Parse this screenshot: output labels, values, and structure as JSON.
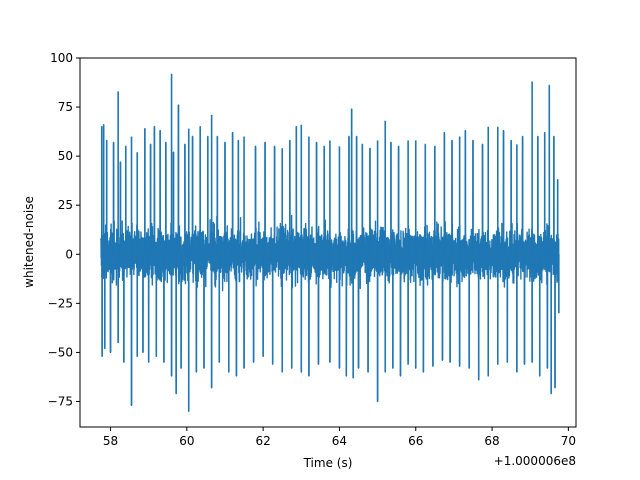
{
  "chart_data": {
    "type": "line",
    "title": "",
    "xlabel": "Time (s)",
    "ylabel": "whitened-noise",
    "x_offset_label": "+1.000006e8",
    "xlim": [
      57.2,
      70.2
    ],
    "ylim": [
      -88,
      100
    ],
    "x_ticks": [
      58,
      60,
      62,
      64,
      66,
      68,
      70
    ],
    "x_tick_labels": [
      "58",
      "60",
      "62",
      "64",
      "66",
      "68",
      "70"
    ],
    "y_ticks": [
      -75,
      -50,
      -25,
      0,
      25,
      50,
      75,
      100
    ],
    "y_tick_labels": [
      "−75",
      "−50",
      "−25",
      "0",
      "25",
      "50",
      "75",
      "100"
    ],
    "grid": false,
    "line_color": "#1f77b4",
    "series": [
      {
        "x_start": 57.75,
        "x_end": 69.75,
        "envelope_upper": 50,
        "envelope_lower": -50,
        "values": [
          [
            57.77,
            65
          ],
          [
            57.82,
            66
          ],
          [
            57.9,
            58
          ],
          [
            58.08,
            57
          ],
          [
            58.2,
            83
          ],
          [
            58.26,
            47
          ],
          [
            58.4,
            55
          ],
          [
            58.55,
            60
          ],
          [
            58.7,
            52
          ],
          [
            58.9,
            64
          ],
          [
            59.05,
            56
          ],
          [
            59.15,
            65
          ],
          [
            59.3,
            63
          ],
          [
            59.45,
            57
          ],
          [
            59.6,
            92
          ],
          [
            59.65,
            52
          ],
          [
            59.78,
            76
          ],
          [
            59.95,
            56
          ],
          [
            60.05,
            64
          ],
          [
            60.15,
            60
          ],
          [
            60.35,
            65
          ],
          [
            60.55,
            60
          ],
          [
            60.65,
            71
          ],
          [
            60.8,
            60
          ],
          [
            61.0,
            57
          ],
          [
            61.2,
            62
          ],
          [
            61.35,
            58
          ],
          [
            61.5,
            60
          ],
          [
            61.8,
            55
          ],
          [
            62.05,
            57
          ],
          [
            62.3,
            55
          ],
          [
            62.5,
            54
          ],
          [
            62.7,
            58
          ],
          [
            62.87,
            65
          ],
          [
            63.0,
            66
          ],
          [
            63.2,
            60
          ],
          [
            63.4,
            57
          ],
          [
            63.6,
            55
          ],
          [
            63.75,
            58
          ],
          [
            64.0,
            55
          ],
          [
            64.25,
            60
          ],
          [
            64.32,
            74
          ],
          [
            64.45,
            60
          ],
          [
            64.6,
            56
          ],
          [
            64.8,
            54
          ],
          [
            65.0,
            58
          ],
          [
            65.2,
            68
          ],
          [
            65.35,
            57
          ],
          [
            65.55,
            55
          ],
          [
            65.8,
            58
          ],
          [
            66.0,
            58
          ],
          [
            66.25,
            56
          ],
          [
            66.5,
            55
          ],
          [
            66.75,
            62
          ],
          [
            66.95,
            58
          ],
          [
            67.15,
            60
          ],
          [
            67.3,
            63
          ],
          [
            67.5,
            58
          ],
          [
            67.75,
            56
          ],
          [
            67.9,
            65
          ],
          [
            68.15,
            65
          ],
          [
            68.3,
            63
          ],
          [
            68.5,
            58
          ],
          [
            68.65,
            56
          ],
          [
            68.8,
            60
          ],
          [
            69.05,
            88
          ],
          [
            69.2,
            60
          ],
          [
            69.38,
            62
          ],
          [
            69.5,
            86
          ],
          [
            69.62,
            60
          ],
          [
            69.72,
            38
          ],
          [
            57.78,
            -52
          ],
          [
            57.85,
            -48
          ],
          [
            58.0,
            -50
          ],
          [
            58.2,
            -45
          ],
          [
            58.35,
            -55
          ],
          [
            58.55,
            -77
          ],
          [
            58.7,
            -52
          ],
          [
            58.85,
            -50
          ],
          [
            59.0,
            -55
          ],
          [
            59.2,
            -52
          ],
          [
            59.4,
            -55
          ],
          [
            59.6,
            -62
          ],
          [
            59.72,
            -71
          ],
          [
            59.85,
            -58
          ],
          [
            60.05,
            -80
          ],
          [
            60.25,
            -60
          ],
          [
            60.45,
            -58
          ],
          [
            60.65,
            -68
          ],
          [
            60.85,
            -55
          ],
          [
            61.1,
            -60
          ],
          [
            61.3,
            -62
          ],
          [
            61.5,
            -58
          ],
          [
            61.75,
            -55
          ],
          [
            62.0,
            -52
          ],
          [
            62.25,
            -56
          ],
          [
            62.5,
            -60
          ],
          [
            62.75,
            -58
          ],
          [
            63.0,
            -60
          ],
          [
            63.2,
            -62
          ],
          [
            63.45,
            -56
          ],
          [
            63.75,
            -55
          ],
          [
            64.0,
            -58
          ],
          [
            64.18,
            -62
          ],
          [
            64.36,
            -63
          ],
          [
            64.5,
            -58
          ],
          [
            64.75,
            -60
          ],
          [
            65.0,
            -75
          ],
          [
            65.2,
            -60
          ],
          [
            65.4,
            -58
          ],
          [
            65.6,
            -62
          ],
          [
            65.8,
            -56
          ],
          [
            66.0,
            -58
          ],
          [
            66.2,
            -60
          ],
          [
            66.45,
            -57
          ],
          [
            66.7,
            -54
          ],
          [
            66.9,
            -55
          ],
          [
            67.15,
            -57
          ],
          [
            67.4,
            -58
          ],
          [
            67.65,
            -64
          ],
          [
            67.9,
            -62
          ],
          [
            68.15,
            -56
          ],
          [
            68.4,
            -55
          ],
          [
            68.65,
            -60
          ],
          [
            68.85,
            -56
          ],
          [
            69.05,
            -55
          ],
          [
            69.25,
            -62
          ],
          [
            69.45,
            -58
          ],
          [
            69.55,
            -71
          ],
          [
            69.65,
            -68
          ],
          [
            69.75,
            -30
          ]
        ]
      }
    ]
  }
}
